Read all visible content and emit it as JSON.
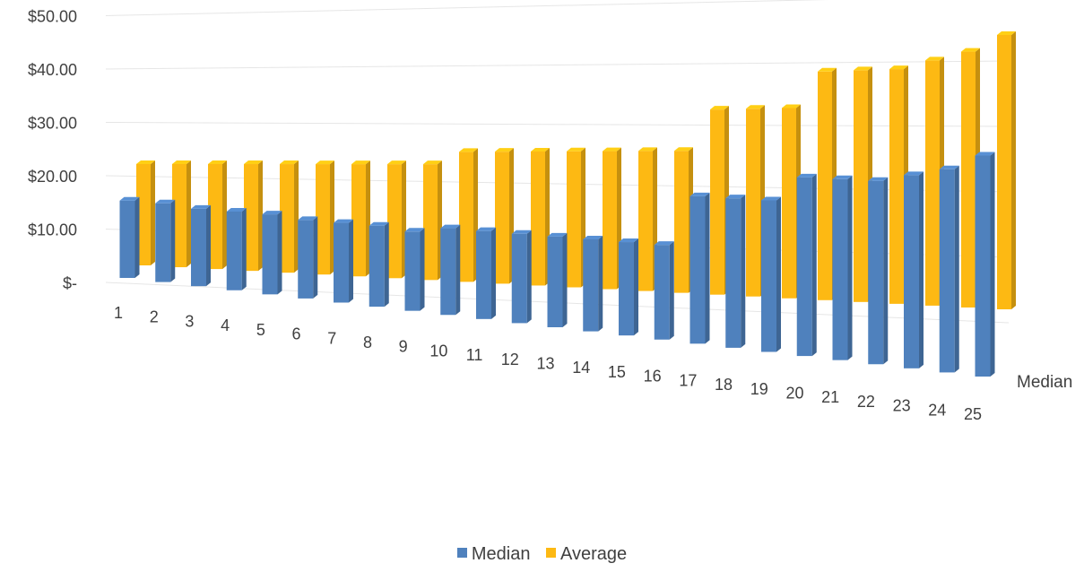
{
  "chart_data": {
    "type": "bar",
    "title": "",
    "xlabel": "",
    "ylabel": "",
    "categories": [
      "1",
      "2",
      "3",
      "4",
      "5",
      "6",
      "7",
      "8",
      "9",
      "10",
      "11",
      "12",
      "13",
      "14",
      "15",
      "16",
      "17",
      "18",
      "19",
      "20",
      "21",
      "22",
      "23",
      "24",
      "25"
    ],
    "series": [
      {
        "name": "Median",
        "color": "#4F81BD",
        "values": [
          14.5,
          14.5,
          14,
          14,
          14,
          13.5,
          13.5,
          13.5,
          13,
          14,
          14,
          14,
          14,
          14,
          14,
          14,
          21.5,
          21.5,
          21.5,
          25,
          25,
          25,
          26,
          27,
          29
        ]
      },
      {
        "name": "Average",
        "color": "#FDB913",
        "values": [
          19,
          19,
          19,
          19,
          19,
          19,
          19,
          19,
          19,
          21,
          21,
          21,
          21,
          21,
          21,
          21,
          27,
          27,
          27,
          32,
          32,
          32,
          33,
          34,
          36
        ]
      }
    ],
    "yaxis": {
      "ylim": [
        0,
        50
      ],
      "ticks": [
        50,
        40,
        30,
        20,
        10,
        0
      ],
      "tick_labels": [
        "$50.00",
        "$40.00",
        "$30.00",
        "$20.00",
        "$10.00",
        "$-"
      ]
    },
    "depth_axis_label": "Median",
    "grid": true,
    "legend": {
      "placement": "bottom",
      "entries": [
        "Median",
        "Average"
      ]
    }
  }
}
